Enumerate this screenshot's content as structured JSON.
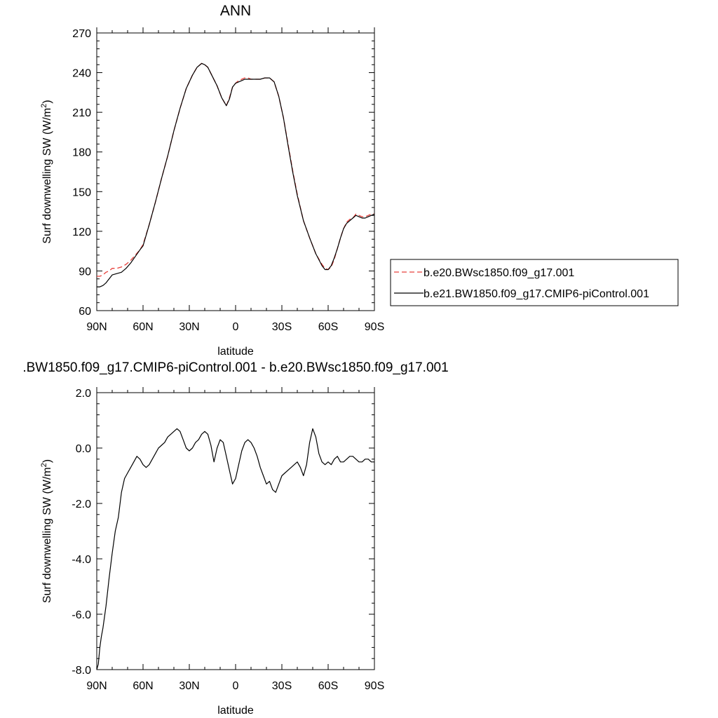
{
  "colors": {
    "dashed_series": "#e8413c",
    "solid_series": "#000000",
    "axes": "#000000",
    "background": "#ffffff"
  },
  "chart_data": [
    {
      "type": "line",
      "title": "ANN",
      "xlabel": "latitude",
      "ylabel": "Surf downwelling SW (W/m",
      "ylabel_sup": "2",
      "ylabel_tail": ")",
      "xlim": [
        90,
        -90
      ],
      "ylim": [
        60,
        270
      ],
      "xticks": [
        90,
        60,
        30,
        0,
        -30,
        -60,
        -90
      ],
      "xtick_labels": [
        "90N",
        "60N",
        "30N",
        "0",
        "30S",
        "60S",
        "90S"
      ],
      "yticks": [
        60,
        90,
        120,
        150,
        180,
        210,
        240,
        270
      ],
      "ytick_labels": [
        "60",
        "90",
        "120",
        "150",
        "180",
        "210",
        "240",
        "270"
      ],
      "grid": false,
      "legend_position": "right",
      "series": [
        {
          "name": "b.e20.BWsc1850.f09_g17.001",
          "style": "dashed",
          "x": [
            90,
            88,
            86,
            84,
            82,
            80,
            77,
            74,
            71,
            68,
            65,
            62,
            60,
            56,
            52,
            48,
            44,
            40,
            36,
            32,
            28,
            25,
            22,
            20,
            18,
            15,
            12,
            9,
            6,
            4,
            2,
            0,
            -2,
            -4,
            -6,
            -8,
            -10,
            -13,
            -16,
            -19,
            -22,
            -25,
            -28,
            -31,
            -34,
            -37,
            -40,
            -44,
            -48,
            -52,
            -56,
            -58,
            -60,
            -62,
            -64,
            -66,
            -68,
            -70,
            -72,
            -74,
            -76,
            -78,
            -80,
            -82,
            -84,
            -86,
            -88,
            -90
          ],
          "y": [
            86,
            86,
            87,
            89,
            90,
            92,
            92,
            93,
            95,
            98,
            102,
            106,
            110,
            125,
            142,
            160,
            177,
            196,
            213,
            228,
            238,
            244,
            247,
            246,
            244,
            237,
            230,
            221,
            215,
            221,
            229,
            232,
            234,
            235,
            236,
            236,
            235,
            235,
            235,
            236,
            236,
            233,
            222,
            206,
            186,
            166,
            148,
            128,
            115,
            103,
            95,
            92,
            91,
            93,
            99,
            107,
            115,
            122,
            127,
            129,
            130,
            133,
            132,
            131,
            131,
            132,
            133,
            133
          ]
        },
        {
          "name": "b.e21.BW1850.f09_g17.CMIP6-piControl.001",
          "style": "solid",
          "x": [
            90,
            88,
            86,
            84,
            82,
            80,
            77,
            74,
            71,
            68,
            65,
            62,
            60,
            56,
            52,
            48,
            44,
            40,
            36,
            32,
            28,
            25,
            22,
            20,
            18,
            15,
            12,
            9,
            6,
            4,
            2,
            0,
            -2,
            -4,
            -6,
            -8,
            -10,
            -13,
            -16,
            -19,
            -22,
            -25,
            -28,
            -31,
            -34,
            -37,
            -40,
            -44,
            -48,
            -52,
            -56,
            -58,
            -60,
            -62,
            -64,
            -66,
            -68,
            -70,
            -72,
            -74,
            -76,
            -78,
            -80,
            -82,
            -84,
            -86,
            -88,
            -90
          ],
          "y": [
            78,
            78,
            79,
            81,
            84,
            87,
            88,
            89,
            92,
            96,
            101,
            106,
            109,
            125,
            142,
            160,
            177,
            196,
            213,
            228,
            238,
            244,
            247,
            246,
            244,
            237,
            230,
            221,
            215,
            220,
            229,
            232,
            233,
            234,
            235,
            235,
            235,
            235,
            235,
            236,
            236,
            233,
            222,
            206,
            185,
            165,
            147,
            128,
            115,
            103,
            94,
            91,
            91,
            94,
            100,
            107,
            115,
            122,
            126,
            128,
            130,
            132,
            131,
            130,
            130,
            131,
            132,
            133
          ]
        }
      ]
    },
    {
      "type": "line",
      "title": ".BW1850.f09_g17.CMIP6-piControl.001 - b.e20.BWsc1850.f09_g17.001",
      "xlabel": "latitude",
      "ylabel": "Surf downwelling SW (W/m",
      "ylabel_sup": "2",
      "ylabel_tail": ")",
      "xlim": [
        90,
        -90
      ],
      "ylim": [
        -8,
        2
      ],
      "xticks": [
        90,
        60,
        30,
        0,
        -30,
        -60,
        -90
      ],
      "xtick_labels": [
        "90N",
        "60N",
        "30N",
        "0",
        "30S",
        "60S",
        "90S"
      ],
      "yticks": [
        -8,
        -6,
        -4,
        -2,
        0,
        2
      ],
      "ytick_labels": [
        "-8.0",
        "-6.0",
        "-4.0",
        "-2.0",
        "0.0",
        "2.0"
      ],
      "grid": false,
      "series": [
        {
          "style": "solid",
          "x": [
            90,
            89,
            88,
            87,
            86,
            85,
            84,
            83,
            82,
            80,
            78,
            76,
            74,
            72,
            70,
            68,
            66,
            64,
            62,
            60,
            58,
            56,
            54,
            52,
            50,
            48,
            46,
            44,
            42,
            40,
            38,
            36,
            34,
            32,
            30,
            28,
            26,
            24,
            22,
            20,
            18,
            16,
            14,
            12,
            10,
            8,
            6,
            4,
            2,
            0,
            -2,
            -4,
            -6,
            -8,
            -10,
            -12,
            -14,
            -16,
            -18,
            -20,
            -22,
            -24,
            -26,
            -28,
            -30,
            -32,
            -34,
            -36,
            -38,
            -40,
            -42,
            -44,
            -46,
            -48,
            -50,
            -52,
            -54,
            -56,
            -58,
            -60,
            -62,
            -64,
            -66,
            -68,
            -70,
            -72,
            -74,
            -76,
            -78,
            -80,
            -82,
            -84,
            -86,
            -88,
            -90
          ],
          "y": [
            -8.0,
            -7.8,
            -7.2,
            -6.8,
            -6.5,
            -6.1,
            -5.7,
            -5.2,
            -4.7,
            -3.8,
            -3.0,
            -2.5,
            -1.6,
            -1.1,
            -0.9,
            -0.7,
            -0.5,
            -0.3,
            -0.4,
            -0.6,
            -0.7,
            -0.6,
            -0.4,
            -0.2,
            0.0,
            0.1,
            0.2,
            0.4,
            0.5,
            0.6,
            0.7,
            0.6,
            0.3,
            0.0,
            -0.1,
            0.0,
            0.2,
            0.3,
            0.5,
            0.6,
            0.5,
            0.1,
            -0.5,
            0.0,
            0.3,
            0.2,
            -0.3,
            -0.8,
            -1.3,
            -1.1,
            -0.6,
            -0.1,
            0.2,
            0.3,
            0.2,
            0.0,
            -0.3,
            -0.7,
            -1.0,
            -1.3,
            -1.2,
            -1.5,
            -1.6,
            -1.3,
            -1.0,
            -0.9,
            -0.8,
            -0.7,
            -0.6,
            -0.5,
            -0.7,
            -1.0,
            -0.6,
            0.2,
            0.7,
            0.4,
            -0.2,
            -0.5,
            -0.6,
            -0.5,
            -0.6,
            -0.4,
            -0.3,
            -0.5,
            -0.5,
            -0.4,
            -0.3,
            -0.3,
            -0.4,
            -0.5,
            -0.5,
            -0.4,
            -0.4,
            -0.5,
            -0.5
          ]
        }
      ]
    }
  ]
}
